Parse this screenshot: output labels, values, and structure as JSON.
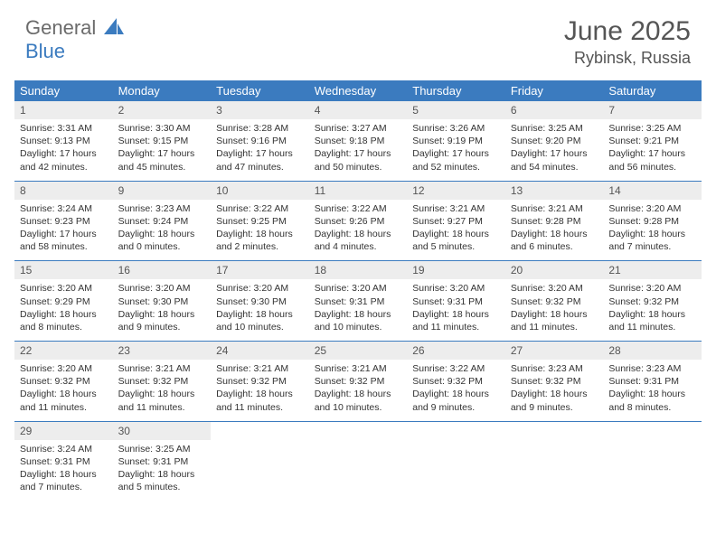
{
  "logo": {
    "part1": "General",
    "part2": "Blue"
  },
  "title": "June 2025",
  "location": "Rybinsk, Russia",
  "colors": {
    "header_bg": "#3b7bbf",
    "header_text": "#ffffff",
    "daynum_bg": "#ededed",
    "text": "#333333",
    "sep": "#3b7bbf"
  },
  "daysOfWeek": [
    "Sunday",
    "Monday",
    "Tuesday",
    "Wednesday",
    "Thursday",
    "Friday",
    "Saturday"
  ],
  "weeks": [
    [
      {
        "n": "1",
        "sr": "3:31 AM",
        "ss": "9:13 PM",
        "dl": "17 hours and 42 minutes."
      },
      {
        "n": "2",
        "sr": "3:30 AM",
        "ss": "9:15 PM",
        "dl": "17 hours and 45 minutes."
      },
      {
        "n": "3",
        "sr": "3:28 AM",
        "ss": "9:16 PM",
        "dl": "17 hours and 47 minutes."
      },
      {
        "n": "4",
        "sr": "3:27 AM",
        "ss": "9:18 PM",
        "dl": "17 hours and 50 minutes."
      },
      {
        "n": "5",
        "sr": "3:26 AM",
        "ss": "9:19 PM",
        "dl": "17 hours and 52 minutes."
      },
      {
        "n": "6",
        "sr": "3:25 AM",
        "ss": "9:20 PM",
        "dl": "17 hours and 54 minutes."
      },
      {
        "n": "7",
        "sr": "3:25 AM",
        "ss": "9:21 PM",
        "dl": "17 hours and 56 minutes."
      }
    ],
    [
      {
        "n": "8",
        "sr": "3:24 AM",
        "ss": "9:23 PM",
        "dl": "17 hours and 58 minutes."
      },
      {
        "n": "9",
        "sr": "3:23 AM",
        "ss": "9:24 PM",
        "dl": "18 hours and 0 minutes."
      },
      {
        "n": "10",
        "sr": "3:22 AM",
        "ss": "9:25 PM",
        "dl": "18 hours and 2 minutes."
      },
      {
        "n": "11",
        "sr": "3:22 AM",
        "ss": "9:26 PM",
        "dl": "18 hours and 4 minutes."
      },
      {
        "n": "12",
        "sr": "3:21 AM",
        "ss": "9:27 PM",
        "dl": "18 hours and 5 minutes."
      },
      {
        "n": "13",
        "sr": "3:21 AM",
        "ss": "9:28 PM",
        "dl": "18 hours and 6 minutes."
      },
      {
        "n": "14",
        "sr": "3:20 AM",
        "ss": "9:28 PM",
        "dl": "18 hours and 7 minutes."
      }
    ],
    [
      {
        "n": "15",
        "sr": "3:20 AM",
        "ss": "9:29 PM",
        "dl": "18 hours and 8 minutes."
      },
      {
        "n": "16",
        "sr": "3:20 AM",
        "ss": "9:30 PM",
        "dl": "18 hours and 9 minutes."
      },
      {
        "n": "17",
        "sr": "3:20 AM",
        "ss": "9:30 PM",
        "dl": "18 hours and 10 minutes."
      },
      {
        "n": "18",
        "sr": "3:20 AM",
        "ss": "9:31 PM",
        "dl": "18 hours and 10 minutes."
      },
      {
        "n": "19",
        "sr": "3:20 AM",
        "ss": "9:31 PM",
        "dl": "18 hours and 11 minutes."
      },
      {
        "n": "20",
        "sr": "3:20 AM",
        "ss": "9:32 PM",
        "dl": "18 hours and 11 minutes."
      },
      {
        "n": "21",
        "sr": "3:20 AM",
        "ss": "9:32 PM",
        "dl": "18 hours and 11 minutes."
      }
    ],
    [
      {
        "n": "22",
        "sr": "3:20 AM",
        "ss": "9:32 PM",
        "dl": "18 hours and 11 minutes."
      },
      {
        "n": "23",
        "sr": "3:21 AM",
        "ss": "9:32 PM",
        "dl": "18 hours and 11 minutes."
      },
      {
        "n": "24",
        "sr": "3:21 AM",
        "ss": "9:32 PM",
        "dl": "18 hours and 11 minutes."
      },
      {
        "n": "25",
        "sr": "3:21 AM",
        "ss": "9:32 PM",
        "dl": "18 hours and 10 minutes."
      },
      {
        "n": "26",
        "sr": "3:22 AM",
        "ss": "9:32 PM",
        "dl": "18 hours and 9 minutes."
      },
      {
        "n": "27",
        "sr": "3:23 AM",
        "ss": "9:32 PM",
        "dl": "18 hours and 9 minutes."
      },
      {
        "n": "28",
        "sr": "3:23 AM",
        "ss": "9:31 PM",
        "dl": "18 hours and 8 minutes."
      }
    ],
    [
      {
        "n": "29",
        "sr": "3:24 AM",
        "ss": "9:31 PM",
        "dl": "18 hours and 7 minutes."
      },
      {
        "n": "30",
        "sr": "3:25 AM",
        "ss": "9:31 PM",
        "dl": "18 hours and 5 minutes."
      },
      null,
      null,
      null,
      null,
      null
    ]
  ],
  "labels": {
    "sunrise": "Sunrise: ",
    "sunset": "Sunset: ",
    "daylight": "Daylight: "
  }
}
